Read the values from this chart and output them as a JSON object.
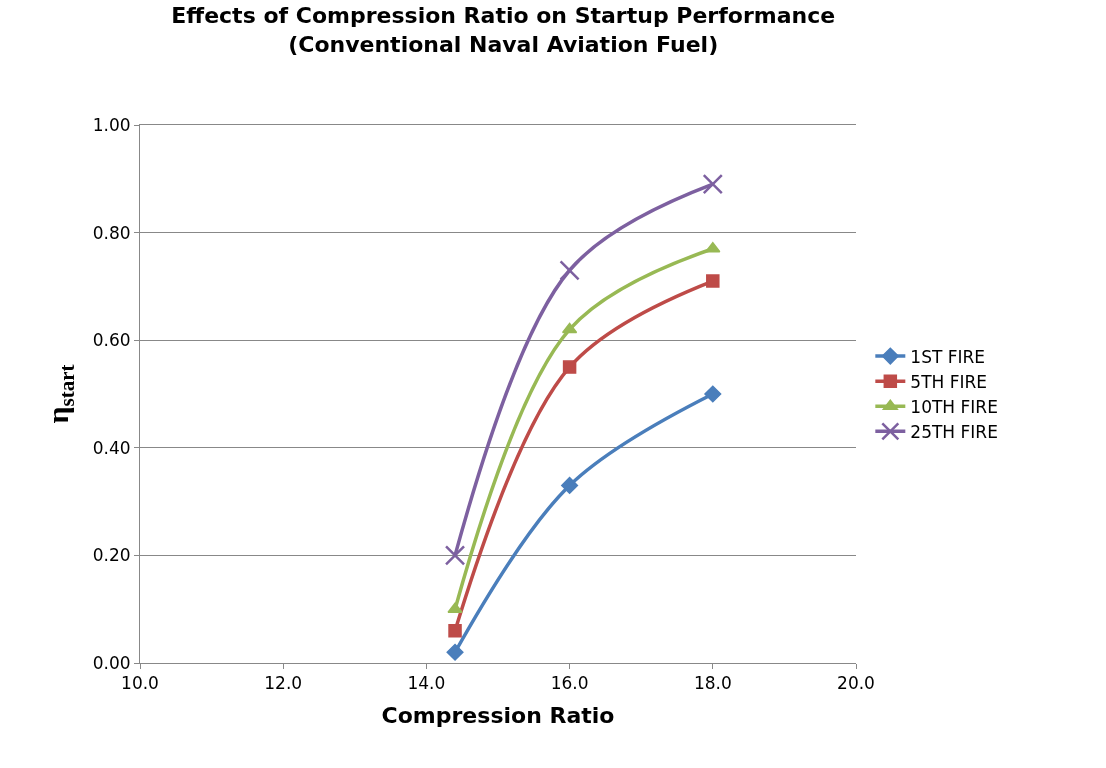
{
  "chart_data": {
    "type": "line",
    "title": "Effects of Compression Ratio on Startup Performance\n(Conventional Naval Aviation Fuel)",
    "xlabel": "Compression Ratio",
    "ylabel": "η$_{start}$",
    "x": [
      14.4,
      16.0,
      18.0
    ],
    "xlim": [
      10,
      20
    ],
    "xticks": [
      {
        "value": 10,
        "label": "10.0"
      },
      {
        "value": 12,
        "label": "12.0"
      },
      {
        "value": 14,
        "label": "14.0"
      },
      {
        "value": 16,
        "label": "16.0"
      },
      {
        "value": 18,
        "label": "18.0"
      },
      {
        "value": 20,
        "label": "20.0"
      }
    ],
    "ylim": [
      0,
      1
    ],
    "yticks": [
      {
        "value": 0,
        "label": "0.00"
      },
      {
        "value": 0.2,
        "label": "0.20"
      },
      {
        "value": 0.4,
        "label": "0.40"
      },
      {
        "value": 0.6,
        "label": "0.60"
      },
      {
        "value": 0.8,
        "label": "0.80"
      },
      {
        "value": 1.0,
        "label": "1.00"
      }
    ],
    "grid": "y",
    "legend": "right",
    "line_style": "solid",
    "series": [
      {
        "name": "1ST FIRE",
        "color": "#4a7ebb",
        "marker": "diamond",
        "values": [
          0.02,
          0.33,
          0.5
        ]
      },
      {
        "name": "5TH FIRE",
        "color": "#be4b48",
        "marker": "square",
        "values": [
          0.06,
          0.55,
          0.71
        ]
      },
      {
        "name": "10TH FIRE",
        "color": "#98b954",
        "marker": "triangle",
        "values": [
          0.1,
          0.62,
          0.77
        ]
      },
      {
        "name": "25TH FIRE",
        "color": "#7d60a0",
        "marker": "cross",
        "values": [
          0.2,
          0.73,
          0.89
        ]
      }
    ]
  }
}
